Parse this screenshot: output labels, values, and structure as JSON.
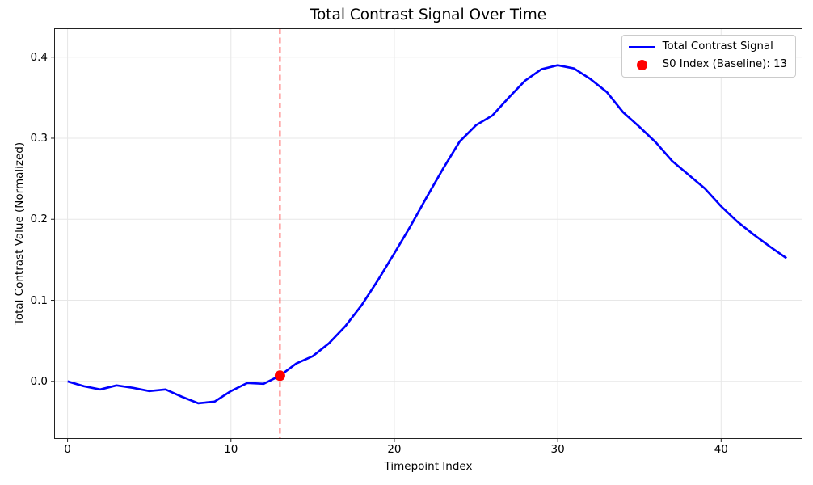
{
  "chart_data": {
    "type": "line",
    "title": "Total Contrast Signal Over Time",
    "xlabel": "Timepoint Index",
    "ylabel": "Total Contrast Value (Normalized)",
    "xlim": [
      -0.82,
      44.98
    ],
    "ylim": [
      -0.071,
      0.4356
    ],
    "x_ticks": [
      0,
      10,
      20,
      30,
      40
    ],
    "y_ticks": [
      0.0,
      0.1,
      0.2,
      0.3,
      0.4
    ],
    "grid": true,
    "legend_position": "upper right",
    "x": [
      0,
      1,
      2,
      3,
      4,
      5,
      6,
      7,
      8,
      9,
      10,
      11,
      12,
      13,
      14,
      15,
      16,
      17,
      18,
      19,
      20,
      21,
      22,
      23,
      24,
      25,
      26,
      27,
      28,
      29,
      30,
      31,
      32,
      33,
      34,
      35,
      36,
      37,
      38,
      39,
      40,
      41,
      42,
      43,
      44
    ],
    "series": [
      {
        "name": "Total Contrast Signal",
        "color": "#0000ff",
        "values": [
          0.0,
          -0.006,
          -0.01,
          -0.005,
          -0.008,
          -0.012,
          -0.01,
          -0.019,
          -0.027,
          -0.025,
          -0.012,
          -0.002,
          -0.003,
          0.007,
          0.022,
          0.031,
          0.047,
          0.068,
          0.094,
          0.125,
          0.158,
          0.192,
          0.228,
          0.263,
          0.296,
          0.316,
          0.328,
          0.35,
          0.371,
          0.385,
          0.39,
          0.386,
          0.373,
          0.357,
          0.332,
          0.314,
          0.295,
          0.272,
          0.255,
          0.238,
          0.216,
          0.197,
          0.181,
          0.166,
          0.152
        ]
      }
    ],
    "baseline_marker": {
      "label": "S0 Index (Baseline): 13",
      "x": 13,
      "y": 0.007,
      "color": "#ff0000"
    },
    "vline": {
      "x": 13,
      "style": "dashed",
      "color": "#ff0000",
      "alpha": 0.7
    },
    "colors": {
      "line": "#0000ff",
      "marker": "#ff0000",
      "vline_effective": "#ff4d4d",
      "grid": "#e7e7e7",
      "spine": "#222222",
      "background": "#ffffff"
    }
  }
}
